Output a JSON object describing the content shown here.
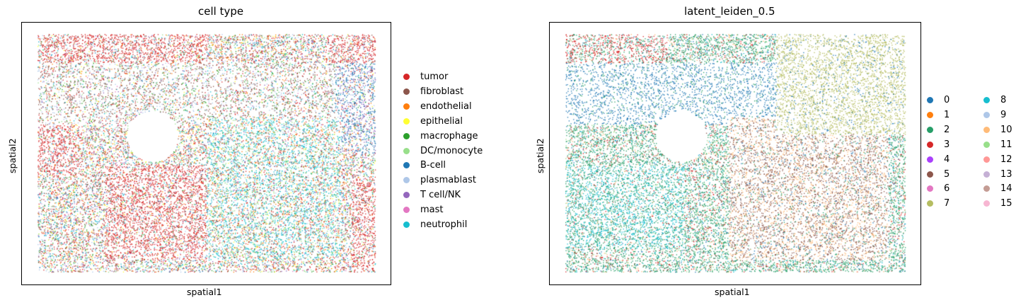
{
  "chart_data": [
    {
      "type": "scatter",
      "title": "cell type",
      "xlabel": "spatial1",
      "ylabel": "spatial2",
      "grid": false,
      "ticks": false,
      "legend_position": "right",
      "legend_columns": 1,
      "categories": [
        {
          "name": "tumor",
          "color": "#d62728"
        },
        {
          "name": "fibroblast",
          "color": "#8c564b"
        },
        {
          "name": "endothelial",
          "color": "#ff7f0e"
        },
        {
          "name": "epithelial",
          "color": "#ffff33"
        },
        {
          "name": "macrophage",
          "color": "#2ca02c"
        },
        {
          "name": "DC/monocyte",
          "color": "#98df8a"
        },
        {
          "name": "B-cell",
          "color": "#1f77b4"
        },
        {
          "name": "plasmablast",
          "color": "#aec7e8"
        },
        {
          "name": "T cell/NK",
          "color": "#9467bd"
        },
        {
          "name": "mast",
          "color": "#e377c2"
        },
        {
          "name": "neutrophil",
          "color": "#17becf"
        }
      ]
    },
    {
      "type": "scatter",
      "title": "latent_leiden_0.5",
      "xlabel": "spatial1",
      "ylabel": "spatial2",
      "grid": false,
      "ticks": false,
      "legend_position": "right",
      "legend_columns": 2,
      "categories": [
        {
          "name": "0",
          "color": "#1f77b4"
        },
        {
          "name": "1",
          "color": "#ff7f0e"
        },
        {
          "name": "2",
          "color": "#279e68"
        },
        {
          "name": "3",
          "color": "#d62728"
        },
        {
          "name": "4",
          "color": "#aa40fc"
        },
        {
          "name": "5",
          "color": "#8c564b"
        },
        {
          "name": "6",
          "color": "#e377c2"
        },
        {
          "name": "7",
          "color": "#b5bd61"
        },
        {
          "name": "8",
          "color": "#17becf"
        },
        {
          "name": "9",
          "color": "#aec7e8"
        },
        {
          "name": "10",
          "color": "#ffbb78"
        },
        {
          "name": "11",
          "color": "#98df8a"
        },
        {
          "name": "12",
          "color": "#ff9896"
        },
        {
          "name": "13",
          "color": "#c5b0d5"
        },
        {
          "name": "14",
          "color": "#c49c94"
        },
        {
          "name": "15",
          "color": "#f7b6d2"
        }
      ]
    }
  ]
}
